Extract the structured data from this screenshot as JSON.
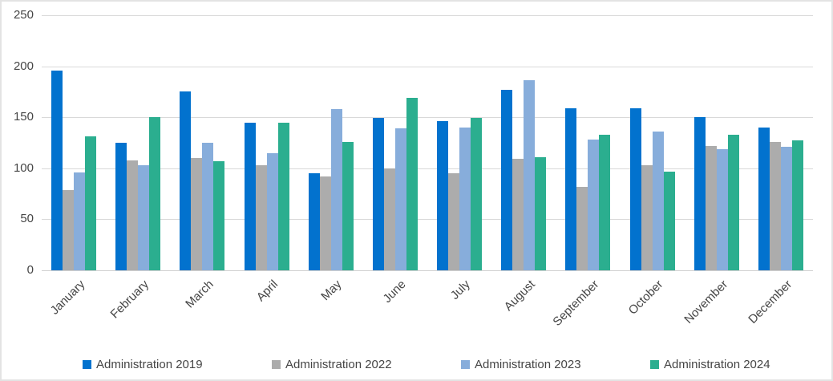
{
  "chart_data": {
    "type": "bar",
    "categories": [
      "January",
      "February",
      "March",
      "April",
      "May",
      "June",
      "July",
      "August",
      "September",
      "October",
      "November",
      "December"
    ],
    "series": [
      {
        "name": "Administration 2019",
        "color": "#0272ce",
        "values": [
          196,
          125,
          175,
          145,
          95,
          149,
          146,
          177,
          159,
          159,
          150,
          140
        ]
      },
      {
        "name": "Administration 2022",
        "color": "#acacac",
        "values": [
          79,
          108,
          110,
          103,
          92,
          100,
          95,
          109,
          82,
          103,
          122,
          126
        ]
      },
      {
        "name": "Administration 2023",
        "color": "#87addb",
        "values": [
          96,
          103,
          125,
          115,
          158,
          139,
          140,
          186,
          128,
          136,
          119,
          121
        ]
      },
      {
        "name": "Administration 2024",
        "color": "#2bae8f",
        "values": [
          131,
          150,
          107,
          145,
          126,
          169,
          149,
          111,
          133,
          97,
          133,
          127
        ]
      }
    ],
    "ylim": [
      0,
      250
    ],
    "yticks": [
      0,
      50,
      100,
      150,
      200,
      250
    ],
    "grid": true,
    "legend_position": "bottom"
  },
  "colors": {
    "grid": "#d9d9d9",
    "axis_text": "#454545",
    "frame_border": "#e3e3e3"
  }
}
